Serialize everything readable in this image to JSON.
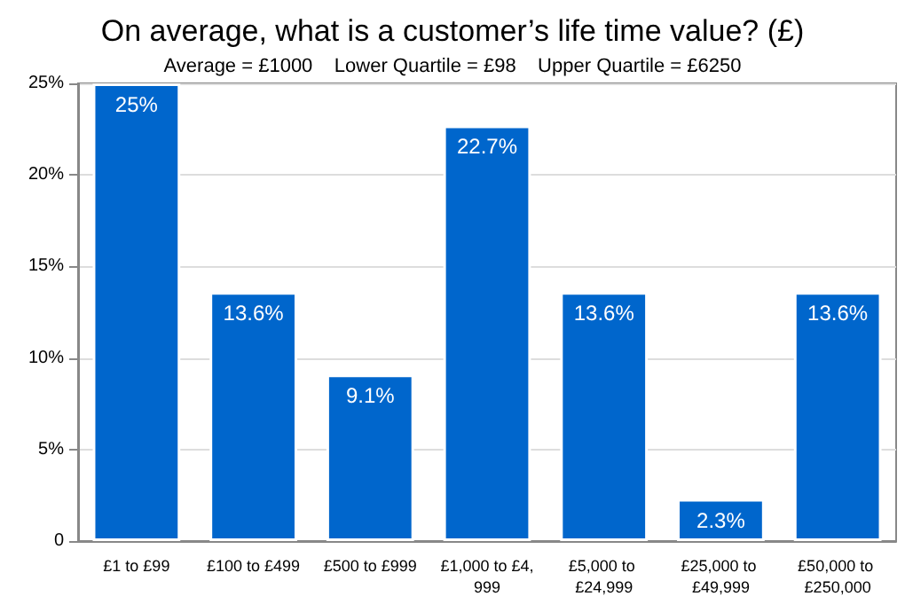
{
  "chart_data": {
    "type": "bar",
    "title": "On average, what is a customer’s life time value? (£)",
    "subtitle": "Average = £1000    Lower Quartile = £98    Upper Quartile = £6250",
    "categories": [
      "£1 to £99",
      "£100 to £499",
      "£500 to £999",
      "£1,000 to £4,999",
      "£5,000 to £24,999",
      "£25,000 to £49,999",
      "£50,000 to £250,000"
    ],
    "values": [
      25,
      13.6,
      9.1,
      22.7,
      13.6,
      2.3,
      13.6
    ],
    "value_labels": [
      "25%",
      "13.6%",
      "9.1%",
      "22.7%",
      "13.6%",
      "2.3%",
      "13.6%"
    ],
    "color": "#0066cc",
    "ylim": [
      0,
      25
    ],
    "yticks": [
      {
        "value": 0,
        "label": "0"
      },
      {
        "value": 5,
        "label": "5%"
      },
      {
        "value": 10,
        "label": "10%"
      },
      {
        "value": 15,
        "label": "15%"
      },
      {
        "value": 20,
        "label": "20%"
      },
      {
        "value": 25,
        "label": "25%"
      }
    ],
    "grid": "y"
  }
}
